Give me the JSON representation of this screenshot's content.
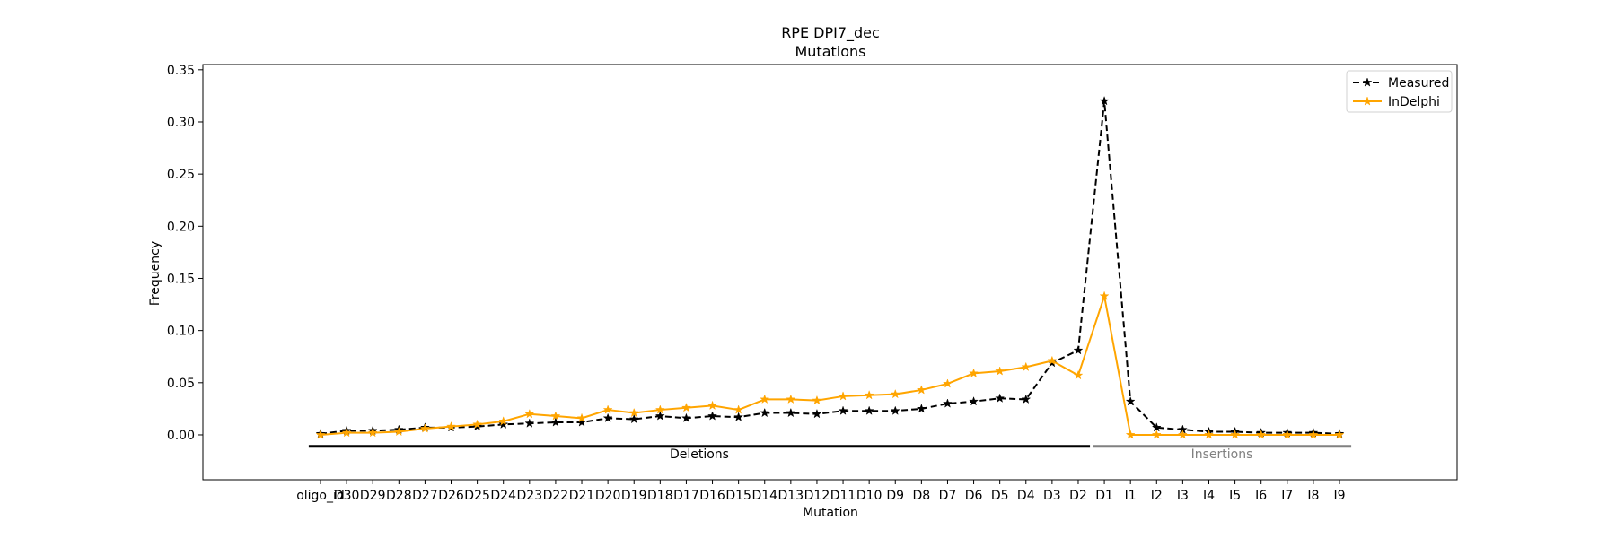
{
  "chart_data": {
    "type": "line",
    "title": "RPE DPI7_dec",
    "subtitle": "Mutations",
    "xlabel": "Mutation",
    "ylabel": "Frequency",
    "ylim": [
      -0.043,
      0.355
    ],
    "y_ticks": [
      0.0,
      0.05,
      0.1,
      0.15,
      0.2,
      0.25,
      0.3,
      0.35
    ],
    "y_tick_labels": [
      "0.00",
      "0.05",
      "0.10",
      "0.15",
      "0.20",
      "0.25",
      "0.30",
      "0.35"
    ],
    "grid": false,
    "legend_position": "top-right",
    "categories": [
      "oligo_id",
      "D30",
      "D29",
      "D28",
      "D27",
      "D26",
      "D25",
      "D24",
      "D23",
      "D22",
      "D21",
      "D20",
      "D19",
      "D18",
      "D17",
      "D16",
      "D15",
      "D14",
      "D13",
      "D12",
      "D11",
      "D10",
      "D9",
      "D8",
      "D7",
      "D6",
      "D5",
      "D4",
      "D3",
      "D2",
      "D1",
      "I1",
      "I2",
      "I3",
      "I4",
      "I5",
      "I6",
      "I7",
      "I8",
      "I9"
    ],
    "series": [
      {
        "name": "Measured",
        "color": "#000000",
        "line_style": "dashed",
        "marker": "star",
        "values": [
          0.001,
          0.004,
          0.004,
          0.005,
          0.007,
          0.007,
          0.008,
          0.01,
          0.011,
          0.012,
          0.012,
          0.016,
          0.015,
          0.018,
          0.016,
          0.018,
          0.017,
          0.021,
          0.021,
          0.02,
          0.023,
          0.023,
          0.023,
          0.025,
          0.03,
          0.032,
          0.035,
          0.034,
          0.069,
          0.081,
          0.32,
          0.032,
          0.007,
          0.005,
          0.003,
          0.003,
          0.002,
          0.002,
          0.002,
          0.001
        ]
      },
      {
        "name": "InDelphi",
        "color": "#FFA500",
        "line_style": "solid",
        "marker": "star",
        "values": [
          0.0,
          0.002,
          0.002,
          0.003,
          0.006,
          0.008,
          0.01,
          0.013,
          0.02,
          0.018,
          0.016,
          0.024,
          0.021,
          0.024,
          0.026,
          0.028,
          0.024,
          0.034,
          0.034,
          0.033,
          0.037,
          0.038,
          0.039,
          0.043,
          0.049,
          0.059,
          0.061,
          0.065,
          0.071,
          0.057,
          0.133,
          0.0,
          0.0,
          0.0,
          0.0,
          0.0,
          0.0,
          0.0,
          0.0,
          0.0
        ]
      }
    ],
    "annotations": [
      {
        "label": "Deletions",
        "from": "oligo_id",
        "to": "D2",
        "y": -0.011,
        "color": "#000000"
      },
      {
        "label": "Insertions",
        "from": "D1",
        "to": "I9",
        "y": -0.011,
        "color": "#808080"
      }
    ]
  }
}
